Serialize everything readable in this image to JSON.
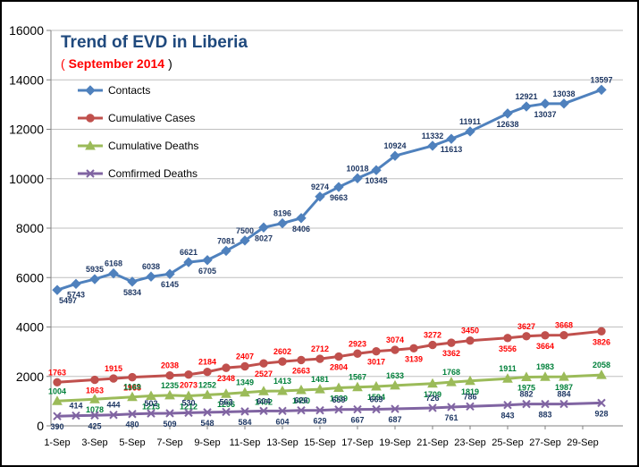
{
  "chart_data": {
    "type": "line",
    "title": "Trend of EVD in Liberia",
    "subtitle": "September 2014",
    "subtitle_open": "(",
    "subtitle_close": ")",
    "title_color": "#1f497d",
    "subtitle_color": "#ff0000",
    "ylim": [
      0,
      16000
    ],
    "yticks": [
      0,
      2000,
      4000,
      6000,
      8000,
      10000,
      12000,
      14000,
      16000
    ],
    "grid": "horizontal",
    "legend_position": "top-left",
    "x_tick_labels": [
      "1-Sep",
      "3-Sep",
      "5-Sep",
      "7-Sep",
      "9-Sep",
      "11-Sep",
      "13-Sep",
      "15-Sep",
      "17-Sep",
      "19-Sep",
      "21-Sep",
      "23-Sep",
      "25-Sep",
      "27-Sep",
      "29-Sep"
    ],
    "series": [
      {
        "name": "Contacts",
        "color": "#4f81bd",
        "label_color": "#1f3864",
        "marker": "diamond",
        "points": [
          [
            "1-Sep",
            5497
          ],
          [
            "2-Sep",
            5743
          ],
          [
            "3-Sep",
            5935
          ],
          [
            "4-Sep",
            6168
          ],
          [
            "5-Sep",
            5834
          ],
          [
            "6-Sep",
            6038
          ],
          [
            "7-Sep",
            6145
          ],
          [
            "8-Sep",
            6621
          ],
          [
            "9-Sep",
            6705
          ],
          [
            "10-Sep",
            7081
          ],
          [
            "11-Sep",
            7500
          ],
          [
            "12-Sep",
            8027
          ],
          [
            "13-Sep",
            8196
          ],
          [
            "14-Sep",
            8406
          ],
          [
            "15-Sep",
            9274
          ],
          [
            "16-Sep",
            9663
          ],
          [
            "17-Sep",
            10018
          ],
          [
            "18-Sep",
            10345
          ],
          [
            "19-Sep",
            10924
          ],
          [
            "21-Sep",
            11332
          ],
          [
            "22-Sep",
            11613
          ],
          [
            "23-Sep",
            11911
          ],
          [
            "25-Sep",
            12638
          ],
          [
            "26-Sep",
            12921
          ],
          [
            "27-Sep",
            13037
          ],
          [
            "28-Sep",
            13038
          ],
          [
            "30-Sep",
            13597
          ]
        ]
      },
      {
        "name": "Cumulative Cases",
        "color": "#c0504d",
        "label_color": "#ff0000",
        "marker": "circle",
        "points": [
          [
            "1-Sep",
            1763
          ],
          [
            "3-Sep",
            1863
          ],
          [
            "4-Sep",
            1915
          ],
          [
            "5-Sep",
            1968
          ],
          [
            "7-Sep",
            2038
          ],
          [
            "8-Sep",
            2073
          ],
          [
            "9-Sep",
            2184
          ],
          [
            "10-Sep",
            2348
          ],
          [
            "11-Sep",
            2407
          ],
          [
            "12-Sep",
            2527
          ],
          [
            "13-Sep",
            2602
          ],
          [
            "14-Sep",
            2663
          ],
          [
            "15-Sep",
            2712
          ],
          [
            "16-Sep",
            2804
          ],
          [
            "17-Sep",
            2923
          ],
          [
            "18-Sep",
            3017
          ],
          [
            "19-Sep",
            3074
          ],
          [
            "20-Sep",
            3139
          ],
          [
            "21-Sep",
            3272
          ],
          [
            "22-Sep",
            3362
          ],
          [
            "23-Sep",
            3450
          ],
          [
            "25-Sep",
            3556
          ],
          [
            "26-Sep",
            3627
          ],
          [
            "27-Sep",
            3664
          ],
          [
            "28-Sep",
            3668
          ],
          [
            "30-Sep",
            3826
          ]
        ]
      },
      {
        "name": "Cumulative Deaths",
        "color": "#9bbb59",
        "label_color": "#00803a",
        "marker": "triangle",
        "points": [
          [
            "1-Sep",
            1004
          ],
          [
            "3-Sep",
            1078
          ],
          [
            "5-Sep",
            1169
          ],
          [
            "6-Sep",
            1213
          ],
          [
            "7-Sep",
            1235
          ],
          [
            "8-Sep",
            1212
          ],
          [
            "9-Sep",
            1252
          ],
          [
            "10-Sep",
            1296
          ],
          [
            "11-Sep",
            1349
          ],
          [
            "12-Sep",
            1402
          ],
          [
            "13-Sep",
            1413
          ],
          [
            "14-Sep",
            1450
          ],
          [
            "15-Sep",
            1481
          ],
          [
            "16-Sep",
            1539
          ],
          [
            "17-Sep",
            1567
          ],
          [
            "18-Sep",
            1594
          ],
          [
            "19-Sep",
            1633
          ],
          [
            "21-Sep",
            1709
          ],
          [
            "22-Sep",
            1768
          ],
          [
            "23-Sep",
            1819
          ],
          [
            "25-Sep",
            1911
          ],
          [
            "26-Sep",
            1975
          ],
          [
            "27-Sep",
            1983
          ],
          [
            "28-Sep",
            1987
          ],
          [
            "30-Sep",
            2058
          ]
        ]
      },
      {
        "name": "Comfirmed Deaths",
        "color": "#8064a2",
        "label_color": "#1f3864",
        "marker": "x",
        "points": [
          [
            "1-Sep",
            390
          ],
          [
            "2-Sep",
            414
          ],
          [
            "3-Sep",
            425
          ],
          [
            "4-Sep",
            444
          ],
          [
            "5-Sep",
            480
          ],
          [
            "6-Sep",
            502
          ],
          [
            "7-Sep",
            509
          ],
          [
            "8-Sep",
            530
          ],
          [
            "9-Sep",
            548
          ],
          [
            "10-Sep",
            563
          ],
          [
            "11-Sep",
            584
          ],
          [
            "12-Sep",
            604
          ],
          [
            "13-Sep",
            604
          ],
          [
            "14-Sep",
            626
          ],
          [
            "15-Sep",
            629
          ],
          [
            "16-Sep",
            659
          ],
          [
            "17-Sep",
            667
          ],
          [
            "18-Sep",
            669
          ],
          [
            "19-Sep",
            687
          ],
          [
            "21-Sep",
            726
          ],
          [
            "22-Sep",
            761
          ],
          [
            "23-Sep",
            786
          ],
          [
            "25-Sep",
            843
          ],
          [
            "26-Sep",
            882
          ],
          [
            "27-Sep",
            883
          ],
          [
            "28-Sep",
            884
          ],
          [
            "30-Sep",
            928
          ]
        ]
      }
    ]
  }
}
